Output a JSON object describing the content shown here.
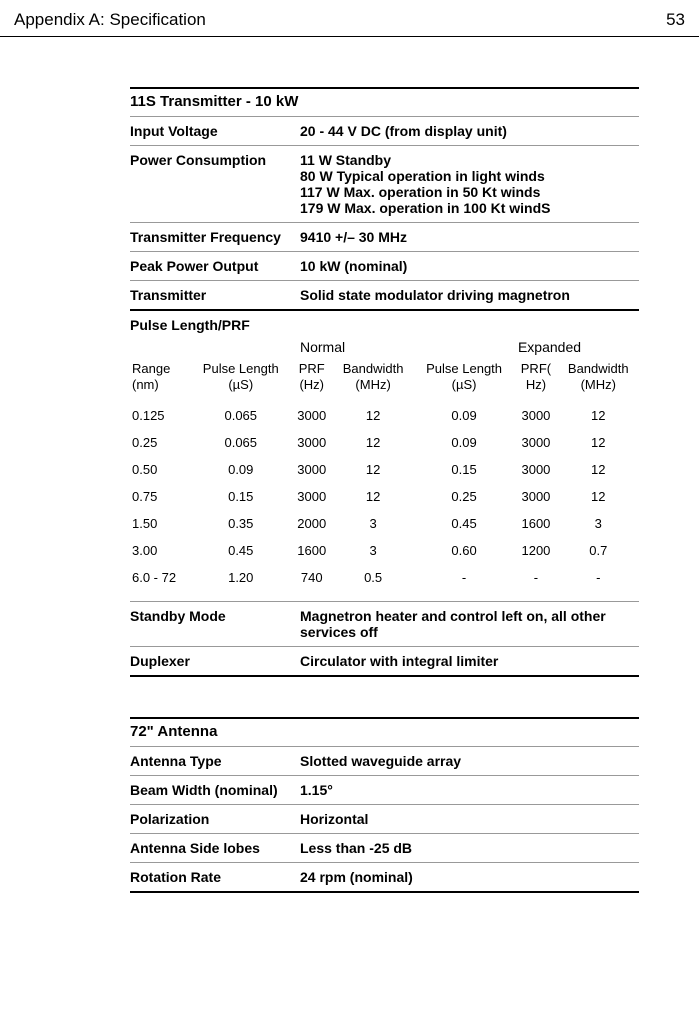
{
  "header": {
    "title": "Appendix A: Specification",
    "page": "53"
  },
  "transmitter": {
    "title": "11S Transmitter - 10 kW",
    "rows": [
      {
        "label": "Input Voltage",
        "value": [
          "20 - 44 V DC (from display unit)"
        ]
      },
      {
        "label": "Power Consumption",
        "value": [
          "11 W Standby",
          "80 W Typical operation in light winds",
          "117 W Max. operation in 50 Kt winds",
          "179 W Max. operation in 100 Kt windS"
        ]
      },
      {
        "label": "Transmitter Frequency",
        "value": [
          "9410 +/– 30 MHz"
        ]
      },
      {
        "label": "Peak Power Output",
        "value": [
          "10 kW (nominal)"
        ]
      },
      {
        "label": "Transmitter",
        "value": [
          "Solid state modulator driving magnetron"
        ]
      }
    ],
    "pulse_label": "Pulse Length/PRF",
    "mode_normal": "Normal",
    "mode_expanded": "Expanded",
    "prf_columns": [
      "Range (nm)",
      "Pulse Length (µS)",
      "PRF (Hz)",
      "Bandwidth (MHz)",
      "Pulse Length (µS)",
      "PRF( Hz)",
      "Bandwidth (MHz)"
    ],
    "prf_rows": [
      [
        "0.125",
        "0.065",
        "3000",
        "12",
        "0.09",
        "3000",
        "12"
      ],
      [
        "0.25",
        "0.065",
        "3000",
        "12",
        "0.09",
        "3000",
        "12"
      ],
      [
        "0.50",
        "0.09",
        "3000",
        "12",
        "0.15",
        "3000",
        "12"
      ],
      [
        "0.75",
        "0.15",
        "3000",
        "12",
        "0.25",
        "3000",
        "12"
      ],
      [
        "1.50",
        "0.35",
        "2000",
        "3",
        "0.45",
        "1600",
        "3"
      ],
      [
        "3.00",
        "0.45",
        "1600",
        "3",
        "0.60",
        "1200",
        "0.7"
      ],
      [
        "6.0 - 72",
        "1.20",
        "740",
        "0.5",
        "-",
        "-",
        "-"
      ]
    ],
    "rows_after": [
      {
        "label": "Standby Mode",
        "value": [
          "Magnetron heater and control left on, all other services off"
        ]
      },
      {
        "label": "Duplexer",
        "value": [
          "Circulator with integral limiter"
        ]
      }
    ]
  },
  "antenna": {
    "title": "72\" Antenna",
    "rows": [
      {
        "label": "Antenna Type",
        "value": [
          "Slotted waveguide array"
        ]
      },
      {
        "label": "Beam Width (nominal)",
        "value": [
          "1.15°"
        ]
      },
      {
        "label": "Polarization",
        "value": [
          "Horizontal"
        ]
      },
      {
        "label": "Antenna Side lobes",
        "value": [
          "Less than -25 dB"
        ]
      },
      {
        "label": "Rotation Rate",
        "value": [
          "24 rpm (nominal)"
        ]
      }
    ]
  }
}
